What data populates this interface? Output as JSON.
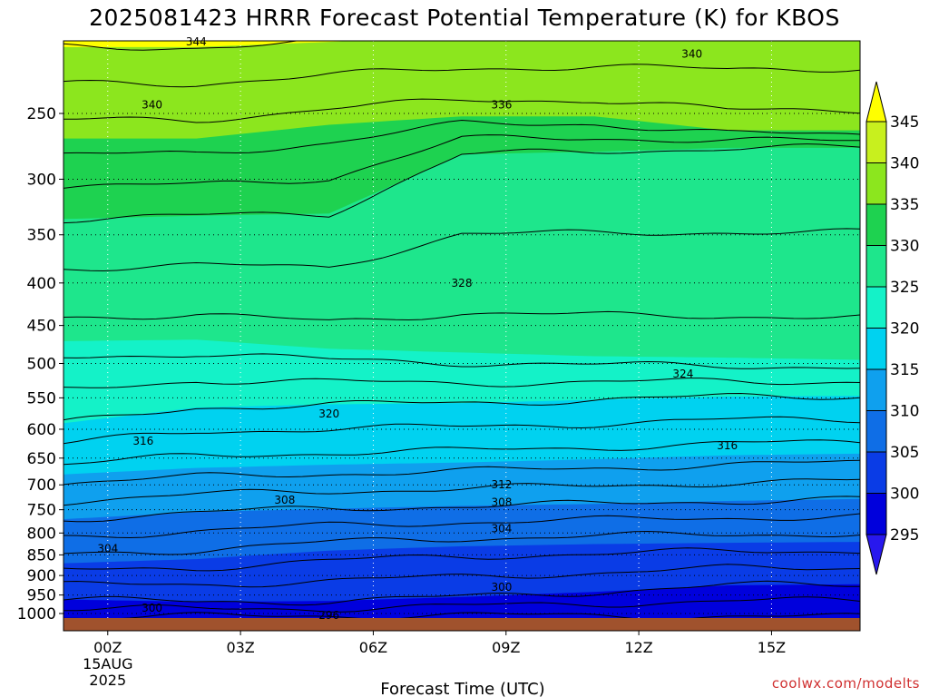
{
  "chart_data": {
    "type": "heatmap",
    "title": "2025081423 HRRR Forecast Potential Temperature (K) for KBOS",
    "xlabel": "Forecast Time (UTC)",
    "ylabel": "",
    "x_ticks": [
      "00Z",
      "03Z",
      "06Z",
      "09Z",
      "12Z",
      "15Z"
    ],
    "x_date": [
      "15AUG",
      "2025"
    ],
    "y_ticks": [
      250,
      300,
      350,
      400,
      450,
      500,
      550,
      600,
      650,
      700,
      750,
      800,
      850,
      900,
      950,
      1000
    ],
    "y_scale": "log",
    "ylim": [
      1000,
      200
    ],
    "xlim": [
      -1,
      17
    ],
    "grid": true,
    "colorbar": {
      "levels": [
        295,
        300,
        305,
        310,
        315,
        320,
        325,
        330,
        335,
        340,
        345
      ],
      "colors": [
        "#2818ee",
        "#0000dc",
        "#0a3ce6",
        "#0f6ee6",
        "#0fa0ee",
        "#00d2f0",
        "#14f2c8",
        "#1ee68c",
        "#1ed250",
        "#8ce61e",
        "#c8f01e",
        "#ffff00"
      ],
      "extend": "both"
    },
    "layers": [
      {
        "theta": 296,
        "pressure": [
          1010,
          1008,
          1006,
          1005,
          1006,
          1008,
          1010
        ]
      },
      {
        "theta": 300,
        "pressure": [
          962,
          968,
          966,
          955,
          942,
          925,
          922
        ]
      },
      {
        "theta": 305,
        "pressure": [
          870,
          860,
          840,
          830,
          825,
          822,
          820
        ]
      },
      {
        "theta": 310,
        "pressure": [
          770,
          755,
          748,
          742,
          738,
          732,
          728
        ]
      },
      {
        "theta": 315,
        "pressure": [
          680,
          668,
          662,
          658,
          652,
          645,
          642
        ]
      },
      {
        "theta": 320,
        "pressure": [
          590,
          565,
          560,
          558,
          553,
          548,
          547
        ]
      },
      {
        "theta": 325,
        "pressure": [
          470,
          468,
          480,
          485,
          490,
          492,
          495
        ]
      },
      {
        "theta": 330,
        "pressure": [
          335,
          332,
          330,
          280,
          278,
          275,
          275
        ]
      },
      {
        "theta": 335,
        "pressure": [
          268,
          268,
          258,
          252,
          252,
          262,
          262
        ]
      },
      {
        "theta": 340,
        "pressure": [
          208,
          208,
          205,
          202,
          200,
          198,
          196
        ]
      }
    ],
    "contour_levels": [
      296,
      298,
      300,
      302,
      304,
      306,
      308,
      310,
      312,
      314,
      316,
      318,
      320,
      322,
      324,
      326,
      328,
      330,
      332,
      334,
      336,
      338,
      340,
      342,
      344
    ],
    "contour_labels": [
      {
        "value": 344,
        "x": 2.0,
        "p": 205
      },
      {
        "value": 340,
        "x": 13.2,
        "p": 212
      },
      {
        "value": 340,
        "x": 1.0,
        "p": 244
      },
      {
        "value": 336,
        "x": 8.9,
        "p": 244
      },
      {
        "value": 328,
        "x": 8.0,
        "p": 400
      },
      {
        "value": 324,
        "x": 13.0,
        "p": 515
      },
      {
        "value": 320,
        "x": 5.0,
        "p": 575
      },
      {
        "value": 316,
        "x": 0.8,
        "p": 620
      },
      {
        "value": 316,
        "x": 14.0,
        "p": 628
      },
      {
        "value": 312,
        "x": 8.9,
        "p": 700
      },
      {
        "value": 308,
        "x": 4.0,
        "p": 730
      },
      {
        "value": 308,
        "x": 8.9,
        "p": 735
      },
      {
        "value": 304,
        "x": 8.9,
        "p": 790
      },
      {
        "value": 304,
        "x": 0.0,
        "p": 835
      },
      {
        "value": 300,
        "x": 8.9,
        "p": 930
      },
      {
        "value": 300,
        "x": 1.0,
        "p": 985
      },
      {
        "value": 296,
        "x": 5.0,
        "p": 1005
      }
    ],
    "ground_color": "#a0522d"
  },
  "credit": "coolwx.com/modelts"
}
